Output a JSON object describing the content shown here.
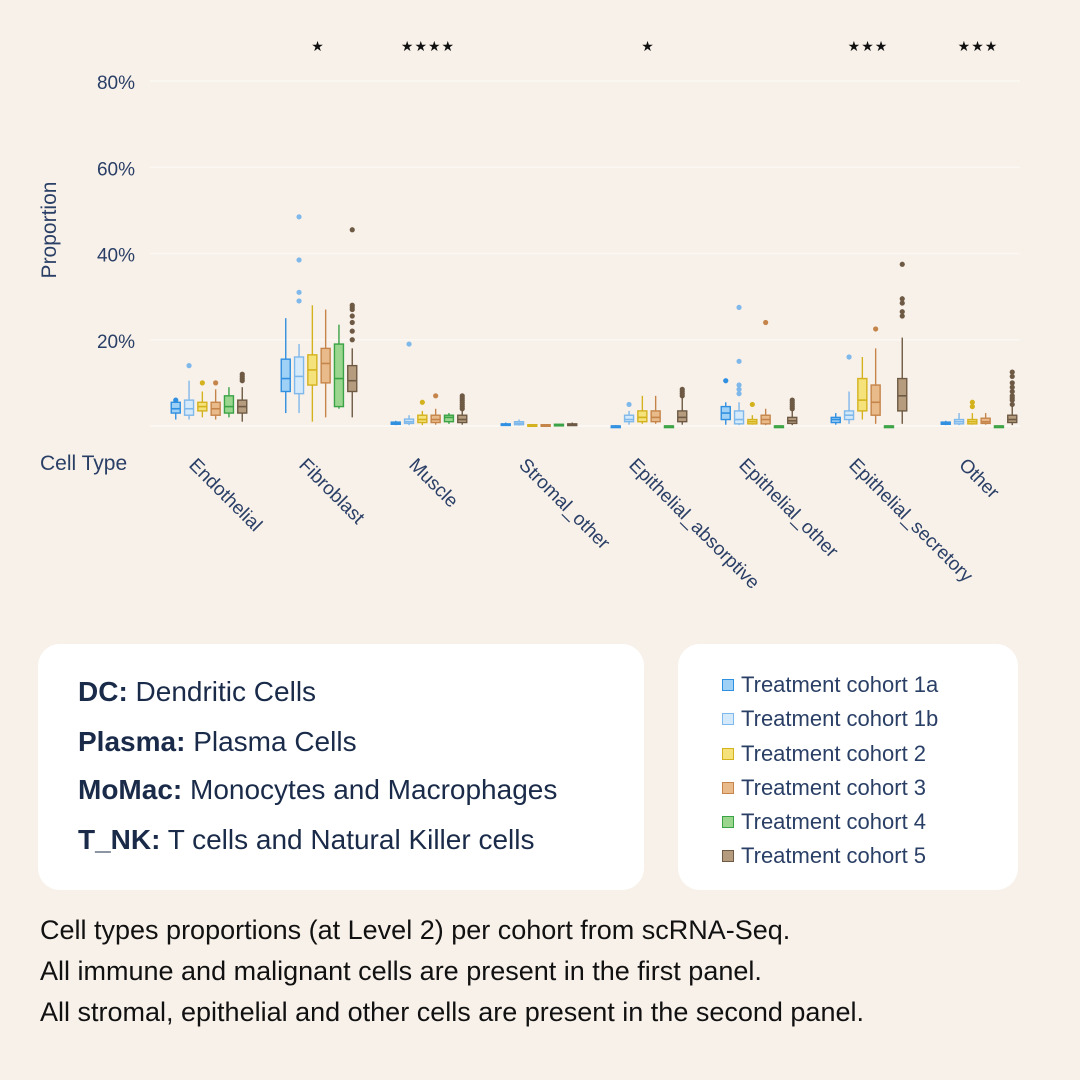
{
  "chart_data": {
    "type": "box",
    "ylabel": "Proportion",
    "xlabel": "Cell Type",
    "ylim": [
      0,
      80
    ],
    "yticks": [
      "20%",
      "40%",
      "60%",
      "80%"
    ],
    "categories": [
      "Endothelial",
      "Fibroblast",
      "Muscle",
      "Stromal_other",
      "Epithelial_absorptive",
      "Epithelial_other",
      "Epithelial_secretory",
      "Other"
    ],
    "significance": [
      "",
      "★",
      "★★★★",
      "",
      "★",
      "",
      "★★★",
      "★★★"
    ],
    "series": [
      {
        "name": "Treatment cohort 1a",
        "color": "#2f8fe0",
        "fill": "#9fd0f5",
        "boxes": [
          {
            "min": 1.5,
            "q1": 3,
            "median": 4,
            "q3": 5.5,
            "max": 6.5,
            "outliers": [
              6
            ]
          },
          {
            "min": 3,
            "q1": 8,
            "median": 11,
            "q3": 15.5,
            "max": 25,
            "outliers": []
          },
          {
            "min": 0.2,
            "q1": 0.4,
            "median": 0.6,
            "q3": 0.9,
            "max": 1.2,
            "outliers": []
          },
          {
            "min": 0.1,
            "q1": 0.2,
            "median": 0.3,
            "q3": 0.5,
            "max": 0.8,
            "outliers": []
          },
          {
            "min": 0,
            "q1": 0,
            "median": 0,
            "q3": 0,
            "max": 0.2,
            "outliers": []
          },
          {
            "min": 0.3,
            "q1": 1.5,
            "median": 3,
            "q3": 4.5,
            "max": 5.5,
            "outliers": [
              10.5
            ]
          },
          {
            "min": 0.3,
            "q1": 0.8,
            "median": 1.5,
            "q3": 2,
            "max": 3,
            "outliers": []
          },
          {
            "min": 0.2,
            "q1": 0.4,
            "median": 0.6,
            "q3": 0.9,
            "max": 1.2,
            "outliers": []
          }
        ]
      },
      {
        "name": "Treatment cohort 1b",
        "color": "#7fb8ea",
        "fill": "#d4e9fa",
        "boxes": [
          {
            "min": 1.5,
            "q1": 2.5,
            "median": 4,
            "q3": 6,
            "max": 10.5,
            "outliers": [
              14
            ]
          },
          {
            "min": 3,
            "q1": 7.5,
            "median": 11.5,
            "q3": 16,
            "max": 19,
            "outliers": [
              29,
              31,
              38.5,
              48.5
            ]
          },
          {
            "min": 0.2,
            "q1": 0.6,
            "median": 1,
            "q3": 1.6,
            "max": 2.5,
            "outliers": [
              19
            ]
          },
          {
            "min": 0.1,
            "q1": 0.3,
            "median": 0.6,
            "q3": 1,
            "max": 1.5,
            "outliers": []
          },
          {
            "min": 0.3,
            "q1": 1,
            "median": 1.5,
            "q3": 2.5,
            "max": 3.5,
            "outliers": [
              5
            ]
          },
          {
            "min": 0.2,
            "q1": 0.5,
            "median": 1.5,
            "q3": 3.5,
            "max": 5.5,
            "outliers": [
              7.5,
              8.5,
              9.5,
              15,
              27.5
            ]
          },
          {
            "min": 0.5,
            "q1": 1.5,
            "median": 2.5,
            "q3": 3.5,
            "max": 8,
            "outliers": [
              16
            ]
          },
          {
            "min": 0.2,
            "q1": 0.5,
            "median": 1,
            "q3": 1.5,
            "max": 3,
            "outliers": []
          }
        ]
      },
      {
        "name": "Treatment cohort 2",
        "color": "#d4b21e",
        "fill": "#f6e27a",
        "boxes": [
          {
            "min": 2,
            "q1": 3.5,
            "median": 4.5,
            "q3": 5.5,
            "max": 8,
            "outliers": [
              10
            ]
          },
          {
            "min": 1,
            "q1": 9.5,
            "median": 13,
            "q3": 16.5,
            "max": 28,
            "outliers": []
          },
          {
            "min": 0.2,
            "q1": 0.8,
            "median": 1.5,
            "q3": 2.5,
            "max": 3.5,
            "outliers": [
              5.5
            ]
          },
          {
            "min": 0,
            "q1": 0.1,
            "median": 0.2,
            "q3": 0.3,
            "max": 0.4,
            "outliers": []
          },
          {
            "min": 0.5,
            "q1": 1,
            "median": 2,
            "q3": 3.5,
            "max": 7,
            "outliers": []
          },
          {
            "min": 0.3,
            "q1": 0.5,
            "median": 1,
            "q3": 1.5,
            "max": 2.5,
            "outliers": [
              5
            ]
          },
          {
            "min": 1.5,
            "q1": 3.5,
            "median": 6,
            "q3": 11,
            "max": 16,
            "outliers": []
          },
          {
            "min": 0.3,
            "q1": 0.5,
            "median": 1,
            "q3": 1.5,
            "max": 3,
            "outliers": [
              4.5,
              5.5
            ]
          }
        ]
      },
      {
        "name": "Treatment cohort 3",
        "color": "#c5854a",
        "fill": "#e9bb8b",
        "boxes": [
          {
            "min": 1.5,
            "q1": 2.5,
            "median": 4,
            "q3": 5.5,
            "max": 8.5,
            "outliers": [
              10
            ]
          },
          {
            "min": 2,
            "q1": 10,
            "median": 14.5,
            "q3": 18,
            "max": 27,
            "outliers": []
          },
          {
            "min": 0.3,
            "q1": 0.8,
            "median": 1.5,
            "q3": 2.5,
            "max": 4,
            "outliers": [
              7
            ]
          },
          {
            "min": 0,
            "q1": 0.1,
            "median": 0.2,
            "q3": 0.3,
            "max": 0.4,
            "outliers": []
          },
          {
            "min": 0.5,
            "q1": 1,
            "median": 2,
            "q3": 3.5,
            "max": 7,
            "outliers": []
          },
          {
            "min": 0.2,
            "q1": 0.5,
            "median": 1.5,
            "q3": 2.5,
            "max": 4,
            "outliers": [
              24
            ]
          },
          {
            "min": 0.5,
            "q1": 2.5,
            "median": 5.5,
            "q3": 9.5,
            "max": 18,
            "outliers": [
              22.5
            ]
          },
          {
            "min": 0.3,
            "q1": 0.6,
            "median": 1,
            "q3": 1.8,
            "max": 3,
            "outliers": []
          }
        ]
      },
      {
        "name": "Treatment cohort 4",
        "color": "#3aa346",
        "fill": "#9bd68f",
        "boxes": [
          {
            "min": 2,
            "q1": 3,
            "median": 4.5,
            "q3": 7,
            "max": 9,
            "outliers": []
          },
          {
            "min": 4,
            "q1": 4.5,
            "median": 11,
            "q3": 19,
            "max": 23.5,
            "outliers": []
          },
          {
            "min": 0.5,
            "q1": 1,
            "median": 2,
            "q3": 2.5,
            "max": 3,
            "outliers": []
          },
          {
            "min": 0.1,
            "q1": 0.2,
            "median": 0.3,
            "q3": 0.4,
            "max": 0.5,
            "outliers": []
          },
          {
            "min": 0,
            "q1": 0,
            "median": 0,
            "q3": 0,
            "max": 0,
            "outliers": []
          },
          {
            "min": 0,
            "q1": 0,
            "median": 0,
            "q3": 0,
            "max": 0,
            "outliers": []
          },
          {
            "min": 0,
            "q1": 0,
            "median": 0,
            "q3": 0,
            "max": 0,
            "outliers": []
          },
          {
            "min": 0,
            "q1": 0,
            "median": 0,
            "q3": 0,
            "max": 0,
            "outliers": []
          }
        ]
      },
      {
        "name": "Treatment cohort 5",
        "color": "#6e5a44",
        "fill": "#b59c7e",
        "boxes": [
          {
            "min": 1,
            "q1": 3,
            "median": 4.5,
            "q3": 6,
            "max": 9,
            "outliers": [
              10.5,
              11,
              11.5,
              12
            ]
          },
          {
            "min": 2,
            "q1": 8,
            "median": 10.5,
            "q3": 14,
            "max": 18,
            "outliers": [
              20,
              22,
              24,
              25.5,
              27,
              27.5,
              28,
              45.5
            ]
          },
          {
            "min": 0.3,
            "q1": 0.8,
            "median": 1.5,
            "q3": 2.5,
            "max": 3.5,
            "outliers": [
              4,
              4.5,
              5,
              5.5,
              6,
              6.5,
              7
            ]
          },
          {
            "min": 0,
            "q1": 0.1,
            "median": 0.3,
            "q3": 0.5,
            "max": 0.8,
            "outliers": []
          },
          {
            "min": 0.3,
            "q1": 1,
            "median": 2,
            "q3": 3.5,
            "max": 6.5,
            "outliers": [
              7,
              7.5,
              8,
              8.5
            ]
          },
          {
            "min": 0.2,
            "q1": 0.6,
            "median": 1.2,
            "q3": 2,
            "max": 3.5,
            "outliers": [
              4,
              4.5,
              5,
              5.5,
              6
            ]
          },
          {
            "min": 0.5,
            "q1": 3.5,
            "median": 7,
            "q3": 11,
            "max": 20.5,
            "outliers": [
              25.5,
              26.5,
              28.5,
              29.5,
              37.5
            ]
          },
          {
            "min": 0.2,
            "q1": 0.8,
            "median": 1.5,
            "q3": 2.5,
            "max": 4.5,
            "outliers": [
              5,
              6,
              6.5,
              7,
              8,
              9,
              10,
              11.5,
              12.5
            ]
          }
        ]
      }
    ]
  },
  "abbreviations": [
    {
      "key": "DC:",
      "value": "Dendritic Cells"
    },
    {
      "key": "Plasma:",
      "value": "Plasma Cells"
    },
    {
      "key": "MoMac:",
      "value": "Monocytes and Macrophages"
    },
    {
      "key": "T_NK:",
      "value": "T cells and Natural Killer cells"
    }
  ],
  "legend": [
    {
      "label": "Treatment cohort 1a",
      "color": "#2f8fe0",
      "fill": "#9fd0f5"
    },
    {
      "label": "Treatment cohort 1b",
      "color": "#7fb8ea",
      "fill": "#d4e9fa"
    },
    {
      "label": "Treatment cohort 2",
      "color": "#d4b21e",
      "fill": "#f6e27a"
    },
    {
      "label": "Treatment cohort 3",
      "color": "#c5854a",
      "fill": "#e9bb8b"
    },
    {
      "label": "Treatment cohort 4",
      "color": "#3aa346",
      "fill": "#9bd68f"
    },
    {
      "label": "Treatment cohort 5",
      "color": "#6e5a44",
      "fill": "#b59c7e"
    }
  ],
  "caption": [
    "Cell types proportions (at Level 2) per cohort from scRNA-Seq.",
    "All immune and malignant cells are present in the first panel.",
    "All stromal, epithelial and other cells are present in the second panel."
  ]
}
